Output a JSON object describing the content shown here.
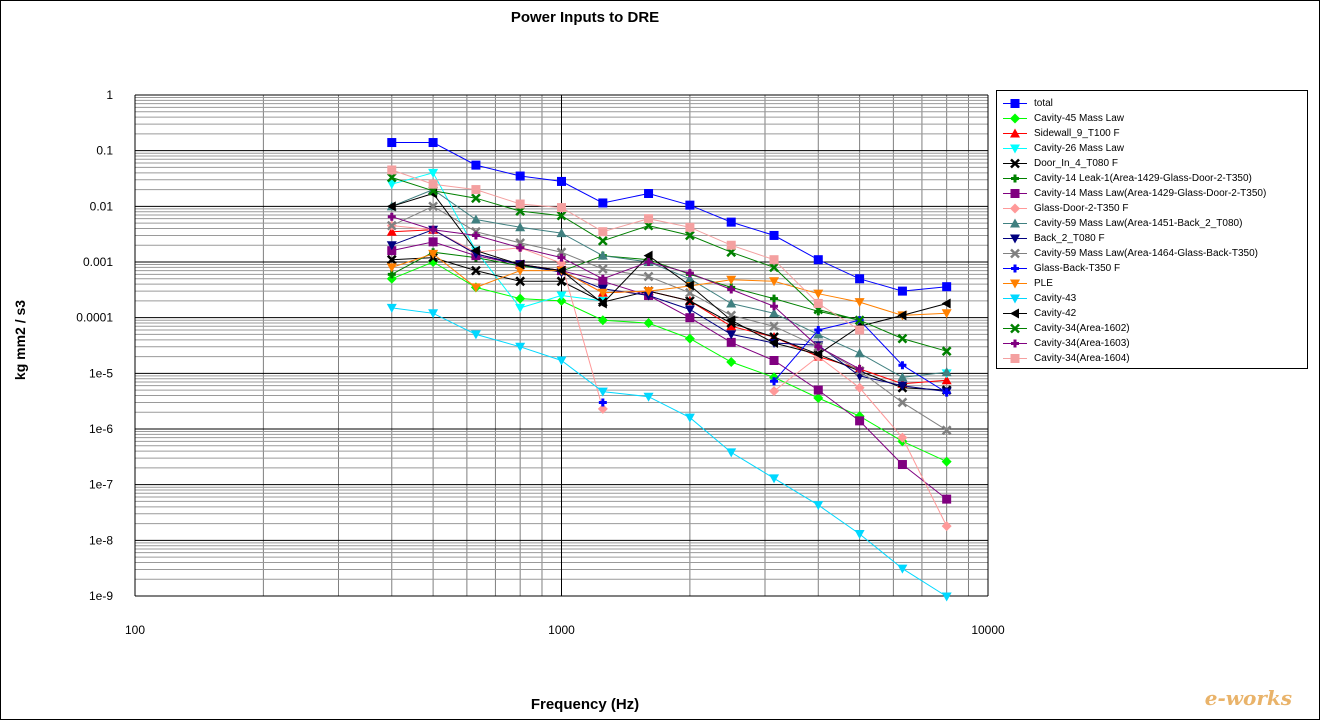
{
  "chart_data": {
    "type": "line",
    "title": "Power Inputs to DRE",
    "xlabel": "Frequency (Hz)",
    "ylabel": "kg mm2 / s3",
    "xscale": "log",
    "yscale": "log",
    "xlim": [
      100,
      10000
    ],
    "ylim": [
      1e-09,
      1
    ],
    "x_tick_labels": [
      "100",
      "1000",
      "10000"
    ],
    "y_tick_labels": [
      "1",
      "0.1",
      "0.01",
      "0.001",
      "0.0001",
      "1e-5",
      "1e-6",
      "1e-7",
      "1e-8",
      "1e-9"
    ],
    "grid": true,
    "legend_position": "right",
    "x": [
      400,
      500,
      630,
      800,
      1000,
      1250,
      1600,
      2000,
      2500,
      3150,
      4000,
      5000,
      6300,
      8000
    ],
    "series": [
      {
        "name": "total",
        "color": "#0000ff",
        "marker": "square",
        "values": [
          0.14,
          0.14,
          0.055,
          0.035,
          0.028,
          0.0115,
          0.017,
          0.0105,
          0.0052,
          0.003,
          0.0011,
          0.0005,
          0.0003,
          0.00036
        ]
      },
      {
        "name": "Cavity-45 Mass Law",
        "color": "#00ff00",
        "marker": "diamond",
        "values": [
          0.0005,
          0.001,
          0.00035,
          0.00022,
          0.0002,
          9e-05,
          8e-05,
          4.2e-05,
          1.6e-05,
          8.5e-06,
          3.6e-06,
          1.7e-06,
          6e-07,
          2.6e-07
        ]
      },
      {
        "name": "Sidewall_9_T100 F",
        "color": "#ff0000",
        "marker": "triangle",
        "values": [
          0.0035,
          0.0038,
          0.0014,
          0.0009,
          0.0007,
          0.00028,
          0.0003,
          0.0002,
          7e-05,
          4.5e-05,
          2e-05,
          1.2e-05,
          6.5e-06,
          7.5e-06
        ]
      },
      {
        "name": "Cavity-26 Mass Law",
        "color": "#00ffff",
        "marker": "triangle-down",
        "values": [
          0.025,
          0.04,
          0.0016,
          0.00015,
          0.00025,
          0.0002,
          null,
          null,
          null,
          null,
          null,
          null,
          null,
          1e-05
        ]
      },
      {
        "name": "Door_In_4_T080 F",
        "color": "#000000",
        "marker": "x",
        "values": [
          0.0011,
          0.0012,
          0.0007,
          0.00045,
          0.00045,
          0.00019,
          0.0003,
          0.0002,
          8e-05,
          4.5e-05,
          2.2e-05,
          1.1e-05,
          5.5e-06,
          5e-06
        ]
      },
      {
        "name": "Cavity-14 Leak-1(Area-1429-Glass-Door-2-T350)",
        "color": "#008000",
        "marker": "plus",
        "values": [
          0.0006,
          0.0015,
          0.0012,
          0.00085,
          0.00068,
          0.0013,
          0.0011,
          0.0006,
          0.00035,
          0.00022,
          0.00013,
          9e-05,
          null,
          null
        ]
      },
      {
        "name": "Cavity-14 Mass Law(Area-1429-Glass-Door-2-T350)",
        "color": "#800080",
        "marker": "square",
        "values": [
          0.0016,
          0.0023,
          0.0013,
          0.0009,
          0.0007,
          0.00045,
          0.00025,
          0.0001,
          3.6e-05,
          1.7e-05,
          5e-06,
          1.4e-06,
          2.3e-07,
          5.5e-08
        ]
      },
      {
        "name": "Glass-Door-2-T350 F",
        "color": "#ff9999",
        "marker": "diamond",
        "values": [
          0.0045,
          0.0038,
          0.0015,
          0.0018,
          0.00095,
          2.3e-06,
          null,
          null,
          null,
          4.8e-06,
          2e-05,
          5.5e-06,
          7e-07,
          1.8e-08
        ]
      },
      {
        "name": "Cavity-59 Mass Law(Area-1451-Back_2_T080)",
        "color": "#408080",
        "marker": "triangle",
        "values": [
          0.01,
          0.02,
          0.0058,
          0.0042,
          0.0033,
          0.0013,
          0.001,
          0.0005,
          0.00018,
          0.00012,
          5e-05,
          2.3e-05,
          8.5e-06,
          1.05e-05
        ]
      },
      {
        "name": "Back_2_T080 F",
        "color": "#000080",
        "marker": "triangle-down",
        "values": [
          0.002,
          0.0038,
          0.0014,
          0.0009,
          0.00065,
          0.00033,
          0.00025,
          0.00014,
          5e-05,
          3.5e-05,
          3.2e-05,
          9e-06,
          6e-06,
          4.7e-06
        ]
      },
      {
        "name": "Cavity-59 Mass Law(Area-1464-Glass-Back-T350)",
        "color": "#808080",
        "marker": "x",
        "values": [
          0.0045,
          0.01,
          0.0035,
          0.0022,
          0.0015,
          0.00075,
          0.00055,
          0.00028,
          0.00011,
          7e-05,
          3e-05,
          1.1e-05,
          3e-06,
          9.5e-07
        ]
      },
      {
        "name": "Glass-Back-T350 F",
        "color": "#0000ff",
        "marker": "plus",
        "values": [
          null,
          null,
          null,
          null,
          null,
          3e-06,
          null,
          null,
          null,
          7.2e-06,
          6e-05,
          9e-05,
          1.4e-05,
          4.5e-06
        ]
      },
      {
        "name": "PLE",
        "color": "#ff8000",
        "marker": "triangle-down",
        "values": [
          0.0008,
          0.0014,
          0.00035,
          0.0007,
          0.0007,
          0.00028,
          0.0003,
          0.00037,
          0.00048,
          0.00045,
          0.00027,
          0.00019,
          0.00011,
          0.00012
        ]
      },
      {
        "name": "Cavity-43",
        "color": "#00d8ff",
        "marker": "triangle-down",
        "values": [
          0.00015,
          0.00012,
          5e-05,
          3e-05,
          1.7e-05,
          4.7e-06,
          3.8e-06,
          1.6e-06,
          3.8e-07,
          1.3e-07,
          4.3e-08,
          1.3e-08,
          3.1e-09,
          9.8e-10
        ]
      },
      {
        "name": "Cavity-42",
        "color": "#000000",
        "marker": "triangle-left",
        "values": [
          0.01,
          0.017,
          0.0016,
          0.0009,
          0.0007,
          0.00018,
          0.0013,
          0.00038,
          9e-05,
          3.5e-05,
          2.2e-05,
          7e-05,
          0.00011,
          0.00018
        ]
      },
      {
        "name": "Cavity-34(Area-1602)",
        "color": "#008000",
        "marker": "x",
        "values": [
          0.033,
          0.019,
          0.014,
          0.0082,
          0.0068,
          0.0024,
          0.0045,
          0.003,
          0.0015,
          0.0008,
          0.00014,
          9e-05,
          4.2e-05,
          2.5e-05
        ]
      },
      {
        "name": "Cavity-34(Area-1603)",
        "color": "#800080",
        "marker": "plus",
        "values": [
          0.0065,
          0.0038,
          0.003,
          0.0018,
          0.0012,
          0.0005,
          0.001,
          0.00063,
          0.00032,
          0.00016,
          3e-05,
          1.2e-05,
          null,
          null
        ]
      },
      {
        "name": "Cavity-34(Area-1604)",
        "color": "#f4a0a0",
        "marker": "square",
        "values": [
          0.045,
          0.025,
          0.02,
          0.011,
          0.0095,
          0.0035,
          0.006,
          0.0042,
          0.002,
          0.0011,
          0.00018,
          6e-05,
          null,
          null
        ]
      }
    ]
  },
  "watermark": "e-works"
}
